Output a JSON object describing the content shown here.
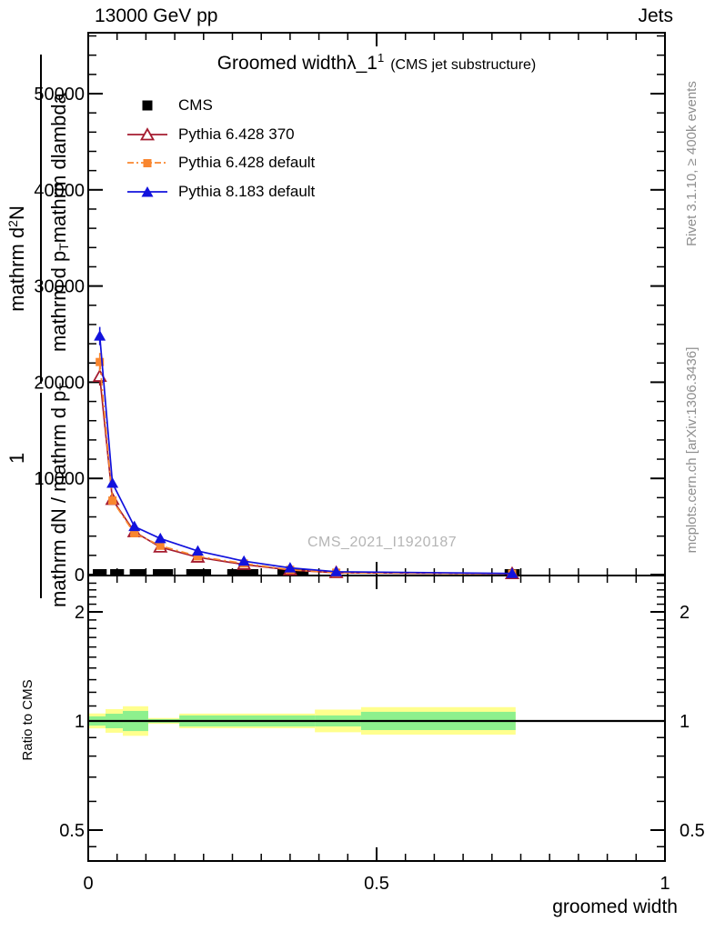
{
  "header": {
    "left": "13000 GeV pp",
    "right": "Jets"
  },
  "title": {
    "main": "Groomed width",
    "lambda": "λ_1",
    "sup": "1",
    "paren": "(CMS jet substructure)"
  },
  "legend": [
    {
      "label": "CMS",
      "marker": "filled-square",
      "color": "#000000",
      "line": "none"
    },
    {
      "label": "Pythia 6.428 370",
      "marker": "open-triangle",
      "color": "#a51c30",
      "line": "solid"
    },
    {
      "label": "Pythia 6.428 default",
      "marker": "filled-square",
      "color": "#f9862f",
      "line": "dashdot"
    },
    {
      "label": "Pythia 8.183 default",
      "marker": "filled-triangle",
      "color": "#1212dd",
      "line": "solid"
    }
  ],
  "y_axis_title": {
    "num_1": "1",
    "num_2a": "mathrm d",
    "num_2sup": "2",
    "num_2b": "N",
    "den_left": "mathrm dN / mathrm d p",
    "den_left_sub": "T",
    "den_right": "mathrm d p",
    "den_right_sub": "T",
    "den_right_b": " mathrm dlambda"
  },
  "side_notes": {
    "top": "Rivet 3.1.10, ≥ 400k events",
    "bottom": "mcplots.cern.ch [arXiv:1306.3436]"
  },
  "watermark": "CMS_2021_I1920187",
  "x_axis_label": "groomed width",
  "ratio_label": "Ratio to CMS",
  "chart_data": {
    "type": "line",
    "title": "Groomed width λ_1^1 (CMS jet substructure)",
    "xlabel": "groomed width",
    "ylabel": "1/(mathrm dN/mathrm dp_T) mathrm d^2N/(mathrm dp_T mathrm dlambda)",
    "xlim": [
      0,
      1
    ],
    "ylim": [
      0,
      56400
    ],
    "x_major_ticks": [
      0,
      0.5,
      1
    ],
    "x_tick_labels": [
      "0",
      "0.5",
      "1"
    ],
    "x_minor_step": 0.05,
    "y_major_ticks": [
      0,
      10000,
      20000,
      30000,
      40000,
      50000
    ],
    "y_tick_labels": [
      "0",
      "10000",
      "20000",
      "30000",
      "40000",
      "50000"
    ],
    "y_minor_step": 2000,
    "x": [
      0.02,
      0.042,
      0.08,
      0.125,
      0.19,
      0.27,
      0.35,
      0.43,
      0.735
    ],
    "series": [
      {
        "name": "Pythia 6.428 370",
        "color": "#a51c30",
        "marker": "open-triangle",
        "line": "solid",
        "values": [
          20600,
          7800,
          4450,
          2850,
          1800,
          1050,
          480,
          190,
          90
        ]
      },
      {
        "name": "Pythia 6.428 default",
        "color": "#f9862f",
        "marker": "filled-square",
        "line": "dashdot",
        "values": [
          22100,
          7700,
          4300,
          3000,
          1900,
          1150,
          500,
          200,
          100
        ]
      },
      {
        "name": "Pythia 8.183 default",
        "color": "#1212dd",
        "marker": "filled-triangle",
        "line": "solid",
        "values": [
          24800,
          9500,
          5000,
          3750,
          2450,
          1400,
          700,
          300,
          120
        ]
      }
    ],
    "cms_data": {
      "name": "CMS",
      "color": "#000000",
      "bins": [
        [
          0.008,
          0.032
        ],
        [
          0.038,
          0.062
        ],
        [
          0.072,
          0.101
        ],
        [
          0.112,
          0.147
        ],
        [
          0.17,
          0.213
        ],
        [
          0.241,
          0.295
        ],
        [
          0.328,
          0.382
        ],
        [
          0.722,
          0.748
        ]
      ],
      "value": 150
    },
    "ratio_panel": {
      "ylabel": "Ratio to CMS",
      "y_major_ticks": [
        0.5,
        1,
        2
      ],
      "y_tick_labels": [
        "0.5",
        "1",
        "2"
      ],
      "y_minor_ticks": [
        0.45,
        0.6,
        0.7,
        0.8,
        0.9,
        1.1,
        1.2,
        1.3,
        1.4,
        1.5,
        1.6,
        1.7,
        1.8,
        1.9,
        2.1,
        2.2,
        2.3,
        2.4
      ],
      "ylim": [
        0.41,
        2.49
      ],
      "reference_line": 1,
      "band_colors": {
        "green": "#8df08d",
        "yellow": "#ffff8e"
      },
      "bands": [
        {
          "x1": 0.0,
          "x2": 0.03,
          "green": [
            0.971,
            1.03
          ],
          "yellow": [
            0.954,
            1.049
          ]
        },
        {
          "x1": 0.03,
          "x2": 0.06,
          "green": [
            0.955,
            1.047
          ],
          "yellow": [
            0.928,
            1.078
          ]
        },
        {
          "x1": 0.06,
          "x2": 0.104,
          "green": [
            0.938,
            1.066
          ],
          "yellow": [
            0.91,
            1.098
          ]
        },
        {
          "x1": 0.104,
          "x2": 0.158,
          "green": [
            0.989,
            1.012
          ],
          "yellow": [
            0.982,
            1.019
          ]
        },
        {
          "x1": 0.158,
          "x2": 0.393,
          "green": [
            0.966,
            1.036
          ],
          "yellow": [
            0.955,
            1.048
          ]
        },
        {
          "x1": 0.393,
          "x2": 0.473,
          "green": [
            0.966,
            1.036
          ],
          "yellow": [
            0.931,
            1.075
          ]
        },
        {
          "x1": 0.473,
          "x2": 0.741,
          "green": [
            0.944,
            1.06
          ],
          "yellow": [
            0.917,
            1.092
          ]
        }
      ]
    }
  }
}
